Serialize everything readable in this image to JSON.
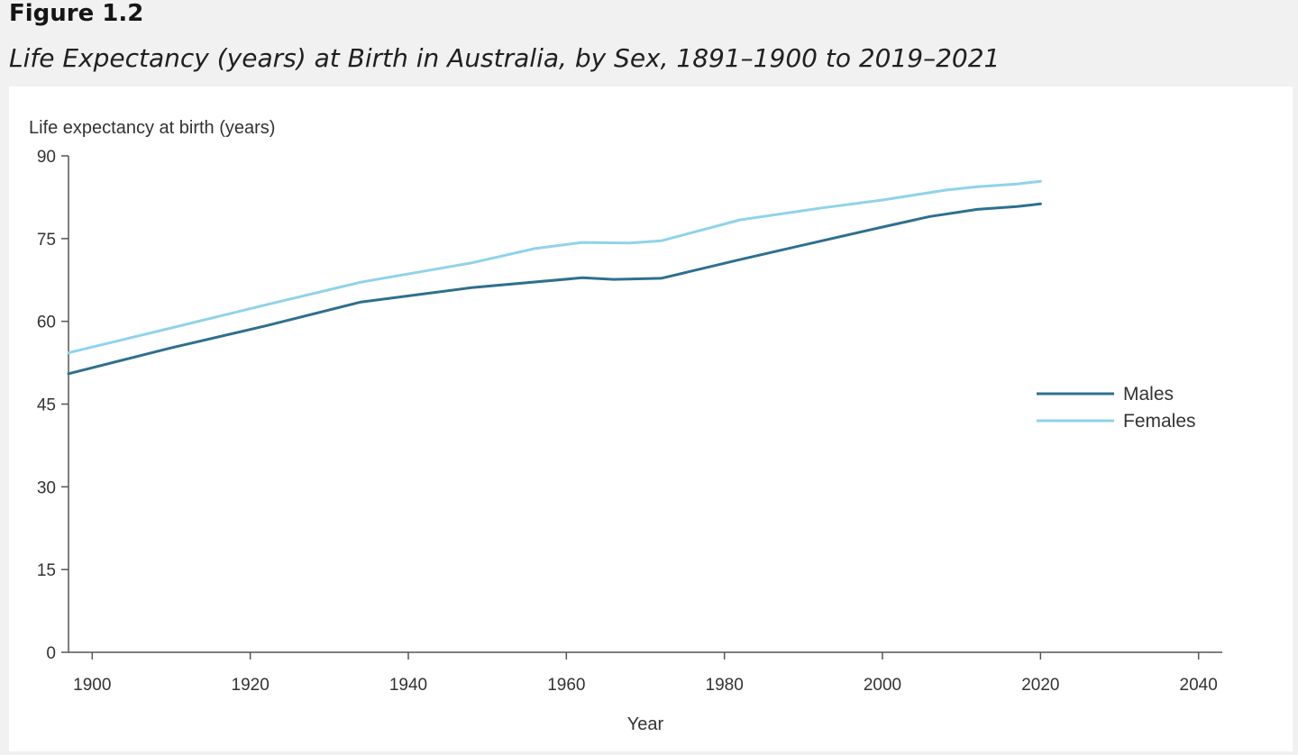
{
  "figure": {
    "label": "Figure 1.2",
    "title": "Life Expectancy (years) at Birth in Australia, by Sex, 1891–1900 to 2019–2021"
  },
  "chart_data": {
    "type": "line",
    "ylabel": "Life expectancy at birth (years)",
    "xlabel": "Year",
    "xlim": [
      1897,
      2043
    ],
    "ylim": [
      0,
      90
    ],
    "x_ticks": [
      1900,
      1920,
      1940,
      1960,
      1980,
      2000,
      2020,
      2040
    ],
    "y_ticks": [
      0,
      15,
      30,
      45,
      60,
      75,
      90
    ],
    "grid": false,
    "legend_position": "right",
    "series": [
      {
        "name": "Males",
        "color": "#2f6f8f",
        "x": [
          1896,
          1910,
          1922,
          1934,
          1948,
          1962,
          1966,
          1972,
          1982,
          1992,
          2000,
          2006,
          2012,
          2017,
          2020
        ],
        "y": [
          50.5,
          55.2,
          59.2,
          63.5,
          66.1,
          67.9,
          67.6,
          67.8,
          71.2,
          74.5,
          77.1,
          79.0,
          80.3,
          80.8,
          81.3
        ]
      },
      {
        "name": "Females",
        "color": "#8fd3ea",
        "x": [
          1896,
          1910,
          1922,
          1934,
          1948,
          1956,
          1962,
          1968,
          1972,
          1982,
          1992,
          2000,
          2008,
          2012,
          2017,
          2020
        ],
        "y": [
          54.3,
          58.8,
          63.0,
          67.1,
          70.6,
          73.2,
          74.3,
          74.2,
          74.6,
          78.4,
          80.5,
          82.0,
          83.8,
          84.4,
          84.9,
          85.4
        ]
      }
    ]
  }
}
